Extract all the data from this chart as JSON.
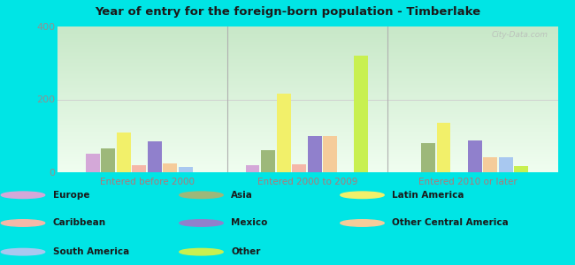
{
  "title": "Year of entry for the foreign-born population - Timberlake",
  "groups": [
    "Entered before 2000",
    "Entered 2000 to 2009",
    "Entered 2010 or later"
  ],
  "series": [
    {
      "name": "Europe",
      "color": "#d4a8d8",
      "values": [
        50,
        20,
        0
      ]
    },
    {
      "name": "Asia",
      "color": "#9db87a",
      "values": [
        65,
        60,
        80
      ]
    },
    {
      "name": "Latin America",
      "color": "#f2f06a",
      "values": [
        110,
        215,
        135
      ]
    },
    {
      "name": "Caribbean",
      "color": "#f5b8a8",
      "values": [
        20,
        22,
        0
      ]
    },
    {
      "name": "Mexico",
      "color": "#9080cc",
      "values": [
        85,
        100,
        88
      ]
    },
    {
      "name": "Other Central America",
      "color": "#f5cc9a",
      "values": [
        25,
        100,
        42
      ]
    },
    {
      "name": "South America",
      "color": "#a8c8f0",
      "values": [
        15,
        0,
        42
      ]
    },
    {
      "name": "Other",
      "color": "#c8f050",
      "values": [
        0,
        320,
        18
      ]
    }
  ],
  "ylim": [
    0,
    400
  ],
  "yticks": [
    0,
    200,
    400
  ],
  "outer_bg": "#00e5e5",
  "plot_bg_top": "#c8e8c8",
  "plot_bg_bottom": "#f0fef0",
  "watermark": "City-Data.com",
  "xtick_color": "#b07878",
  "ytick_color": "#909090",
  "legend_cols": [
    [
      [
        "Europe",
        "#d4a8d8"
      ],
      [
        "Caribbean",
        "#f5b8a8"
      ],
      [
        "South America",
        "#a8c8f0"
      ]
    ],
    [
      [
        "Asia",
        "#9db87a"
      ],
      [
        "Mexico",
        "#9080cc"
      ],
      [
        "Other",
        "#c8f050"
      ]
    ],
    [
      [
        "Latin America",
        "#f2f06a"
      ],
      [
        "Other Central America",
        "#f5cc9a"
      ]
    ]
  ]
}
